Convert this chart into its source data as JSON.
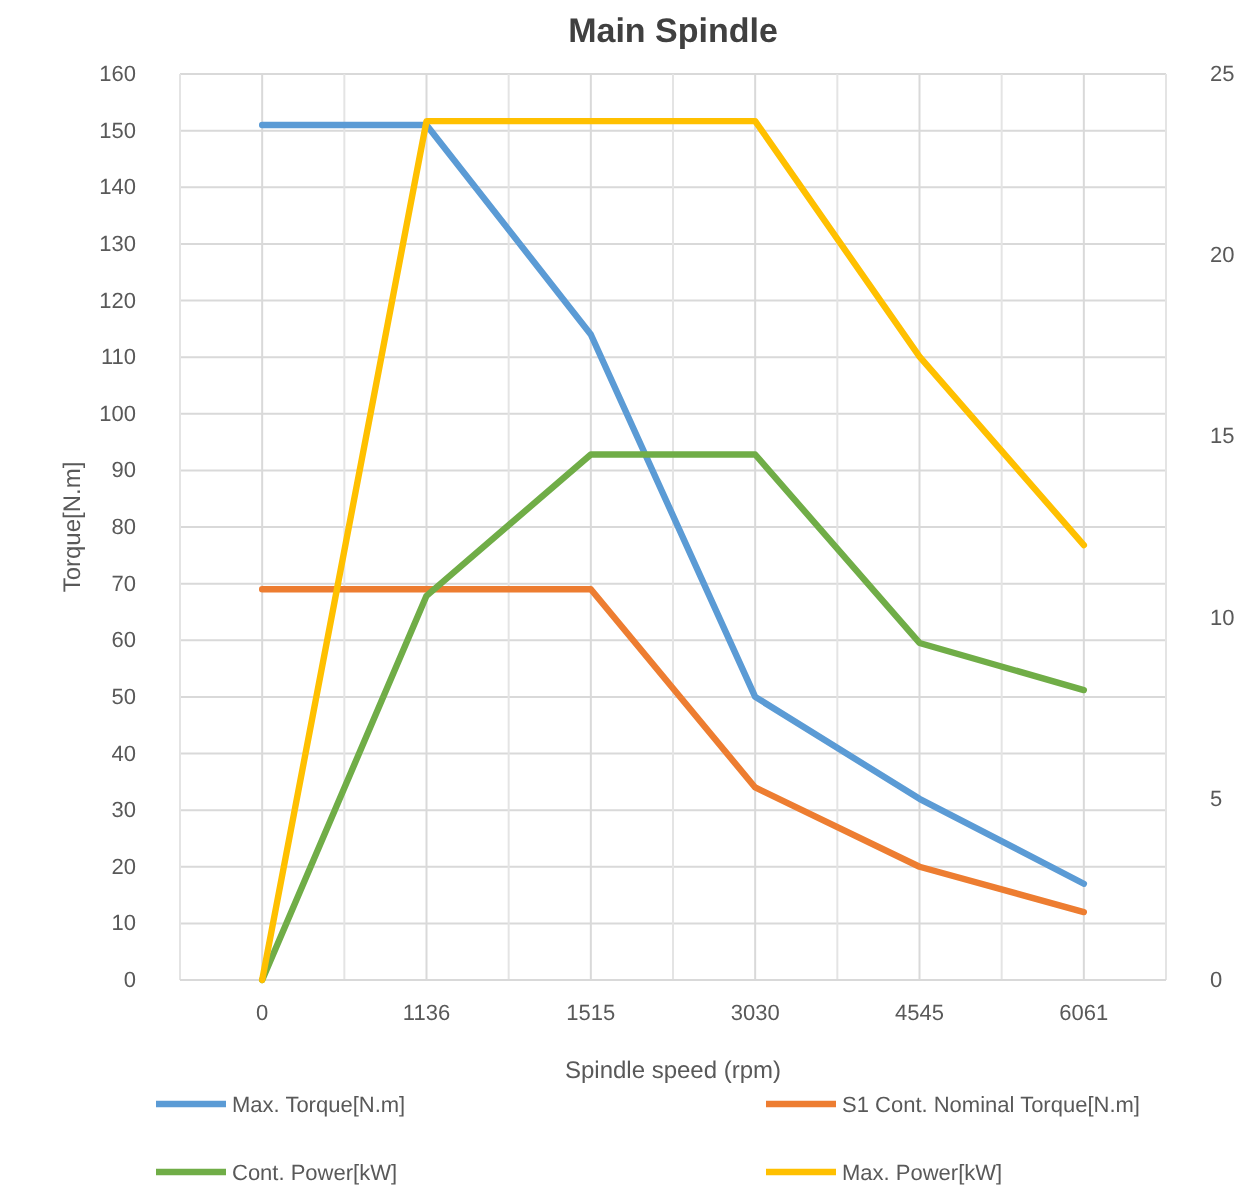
{
  "chart_data": {
    "type": "line",
    "title": "Main Spindle",
    "xlabel": "Spindle speed (rpm)",
    "ylabel": "Torque[N.m]",
    "categories": [
      "0",
      "1136",
      "1515",
      "3030",
      "4545",
      "6061"
    ],
    "series": [
      {
        "name": "Max. Torque[N.m]",
        "color": "#5b9bd5",
        "values": [
          151,
          151,
          114,
          50,
          32,
          17
        ]
      },
      {
        "name": "S1 Cont. Nominal Torque[N.m]",
        "color": "#ed7d31",
        "values": [
          69,
          69,
          69,
          34,
          20,
          12
        ]
      },
      {
        "name": "Cont. Power[kW]",
        "color": "#70ad47",
        "axis": "y2",
        "values": [
          0,
          10.6,
          14.5,
          14.5,
          9.3,
          8
        ]
      },
      {
        "name": "Max. Power[kW]",
        "color": "#ffc000",
        "axis": "y2",
        "values": [
          0,
          23.7,
          23.7,
          23.7,
          17.2,
          12
        ]
      }
    ],
    "ylim": [
      0,
      160
    ],
    "yticks": [
      0,
      10,
      20,
      30,
      40,
      50,
      60,
      70,
      80,
      90,
      100,
      110,
      120,
      130,
      140,
      150,
      160
    ],
    "y2lim": [
      0,
      25
    ],
    "y2ticks": [
      0,
      5,
      10,
      15,
      20,
      25
    ],
    "grid": true,
    "legend": "bottom",
    "marker": "none",
    "line_style": "solid"
  }
}
